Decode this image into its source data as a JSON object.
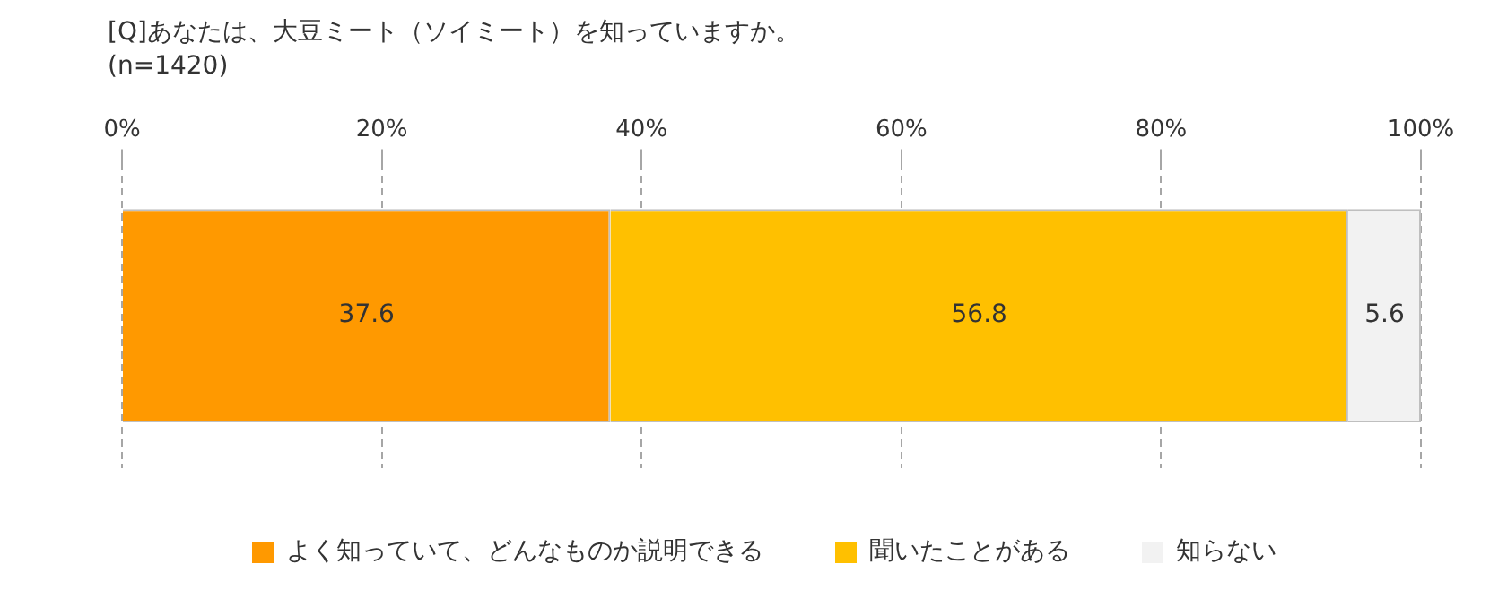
{
  "chart_data": {
    "type": "bar",
    "orientation": "horizontal",
    "stacked": true,
    "title": "[Q]あなたは、大豆ミート（ソイミート）を知っていますか。",
    "subtitle": "(n=1420)",
    "categories": [
      null
    ],
    "series": [
      {
        "name": "よく知っていて、どんなものか説明できる",
        "color": "#ff9900",
        "values": [
          37.6
        ]
      },
      {
        "name": "聞いたことがある",
        "color": "#ffc000",
        "values": [
          56.8
        ]
      },
      {
        "name": "知らない",
        "color": "#f2f2f2",
        "values": [
          5.6
        ]
      }
    ],
    "xlim": [
      0,
      100
    ],
    "xticks": [
      {
        "value": 0,
        "label": "0%"
      },
      {
        "value": 20,
        "label": "20%"
      },
      {
        "value": 40,
        "label": "40%"
      },
      {
        "value": 60,
        "label": "60%"
      },
      {
        "value": 80,
        "label": "80%"
      },
      {
        "value": 100,
        "label": "100%"
      }
    ],
    "grid": "x",
    "legend": "bottom",
    "data_labels": true
  }
}
